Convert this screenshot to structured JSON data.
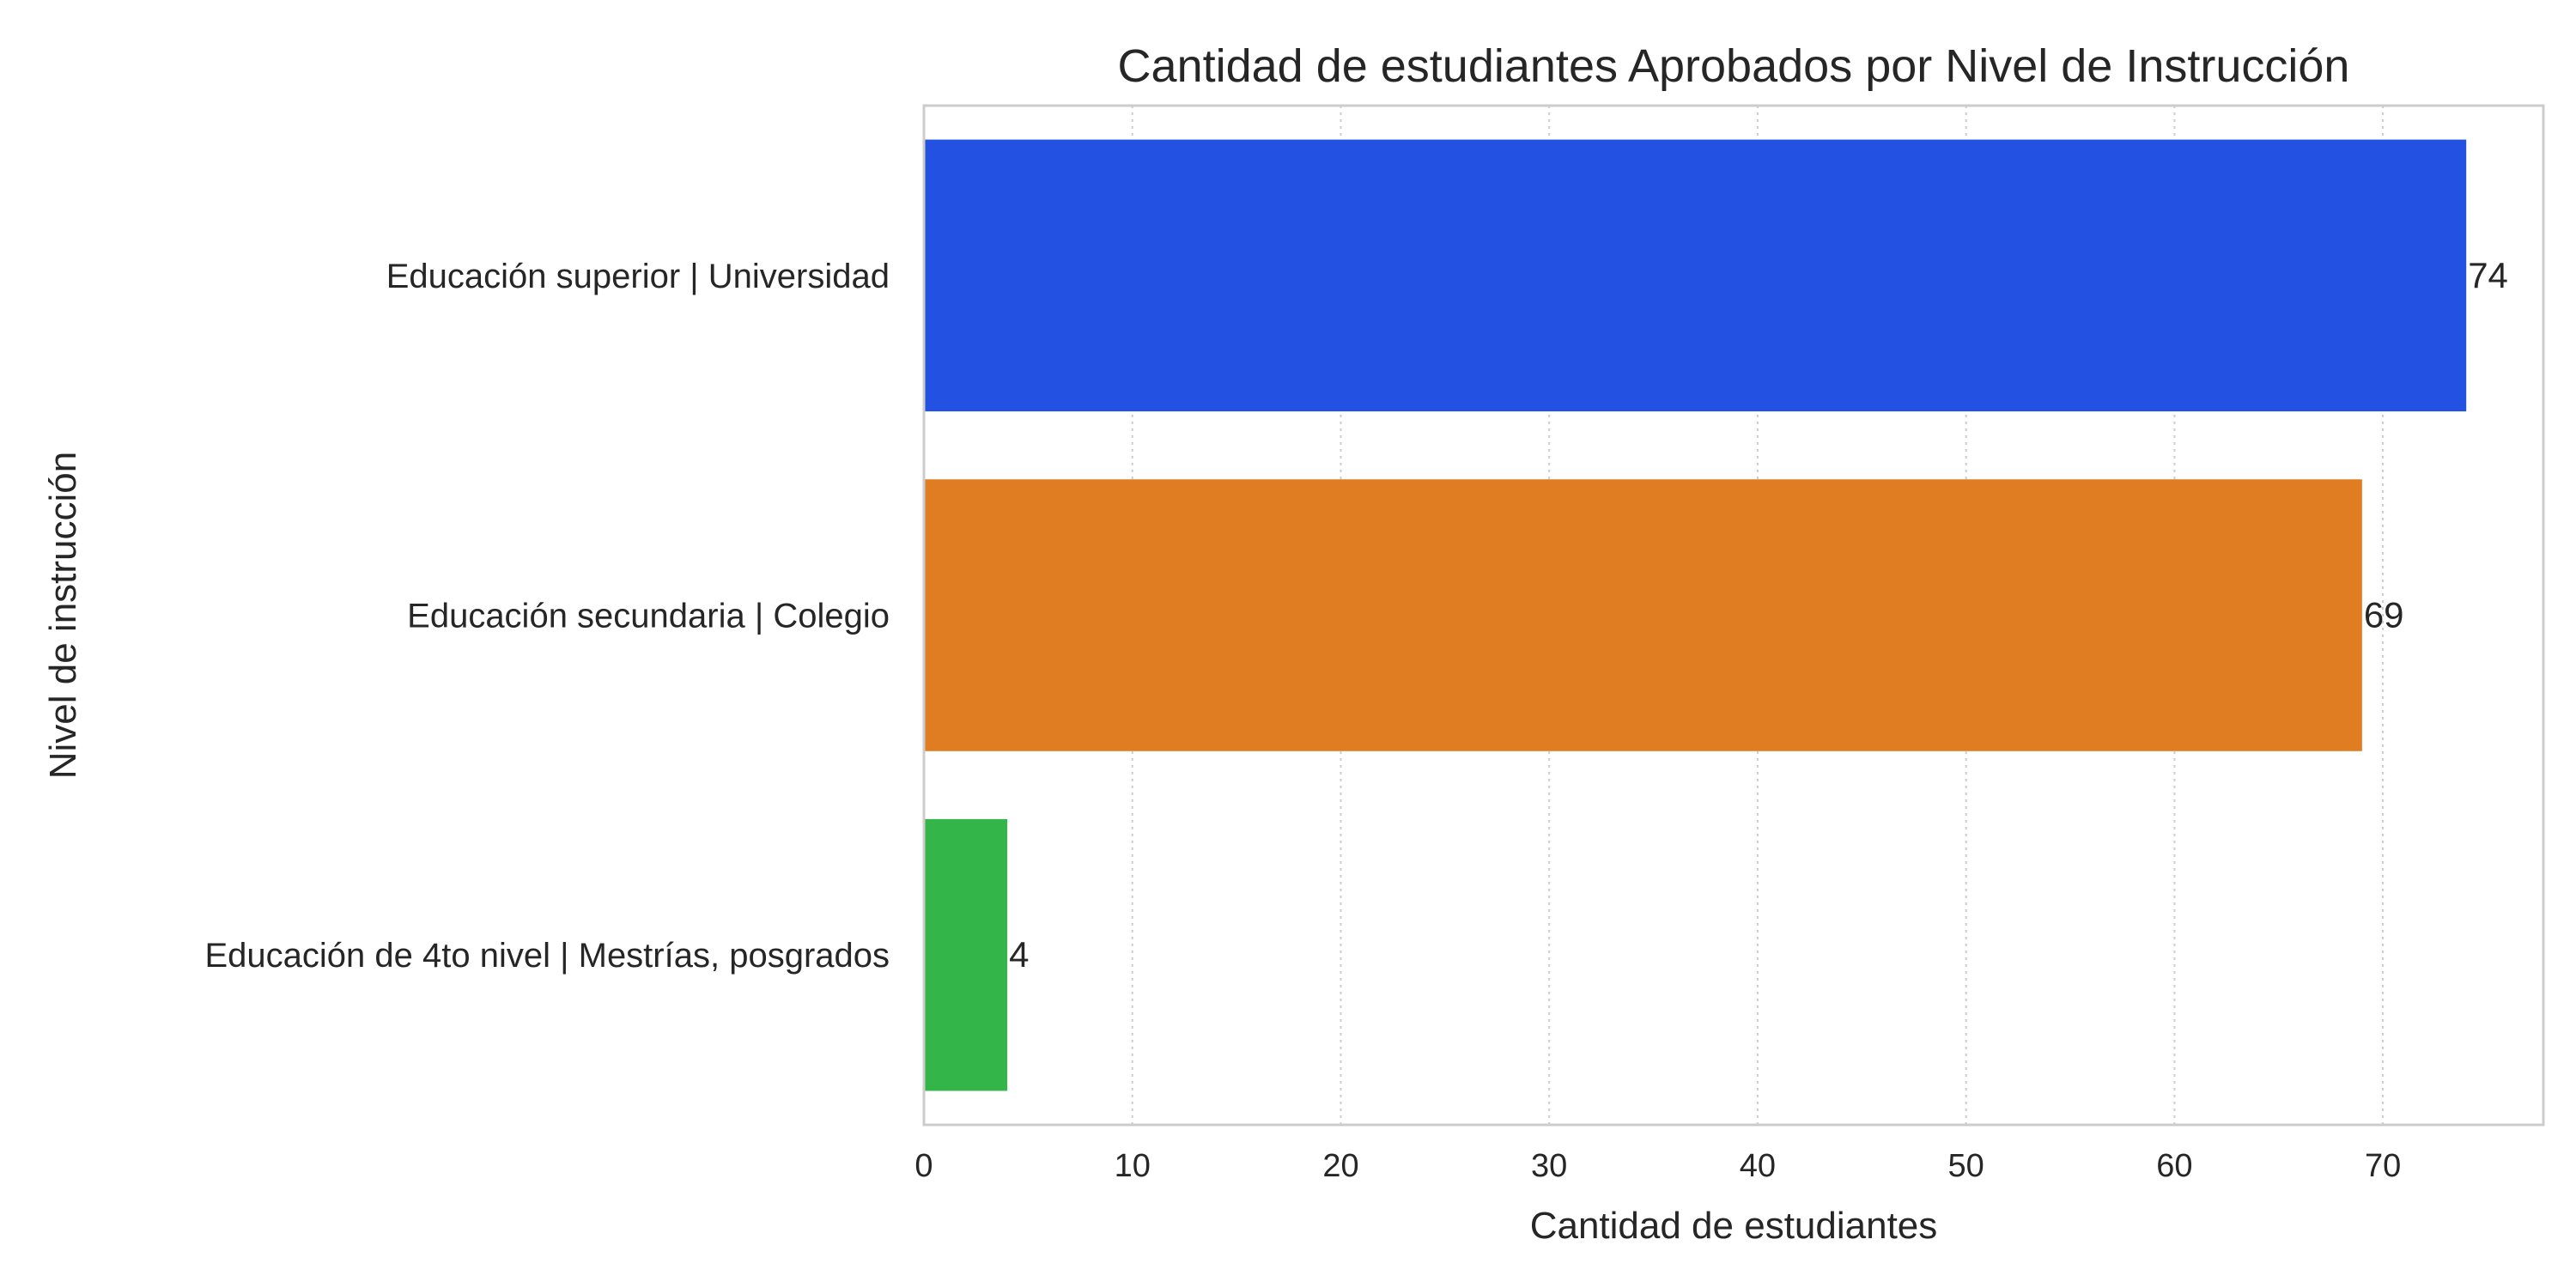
{
  "chart_data": {
    "type": "bar",
    "orientation": "horizontal",
    "title": "Cantidad de estudiantes Aprobados por Nivel de Instrucción",
    "xlabel": "Cantidad de estudiantes",
    "ylabel": "Nivel de instrucción",
    "categories": [
      "Educación superior | Universidad",
      "Educación secundaria | Colegio",
      "Educación de 4to nivel | Mestrías, posgrados"
    ],
    "values": [
      74,
      69,
      4
    ],
    "data_labels": [
      "74",
      "69",
      "4"
    ],
    "colors": [
      "#2352e3",
      "#e07c21",
      "#33b54a"
    ],
    "xlim": [
      0,
      77.7
    ],
    "xticks": [
      0,
      10,
      20,
      30,
      40,
      50,
      60,
      70
    ],
    "xtick_labels": [
      "0",
      "10",
      "20",
      "30",
      "40",
      "50",
      "60",
      "70"
    ],
    "grid": {
      "x": true,
      "y": false,
      "style": "dotted",
      "color": "#cccccc"
    },
    "axis_color": "#cccccc",
    "legend": "none"
  }
}
